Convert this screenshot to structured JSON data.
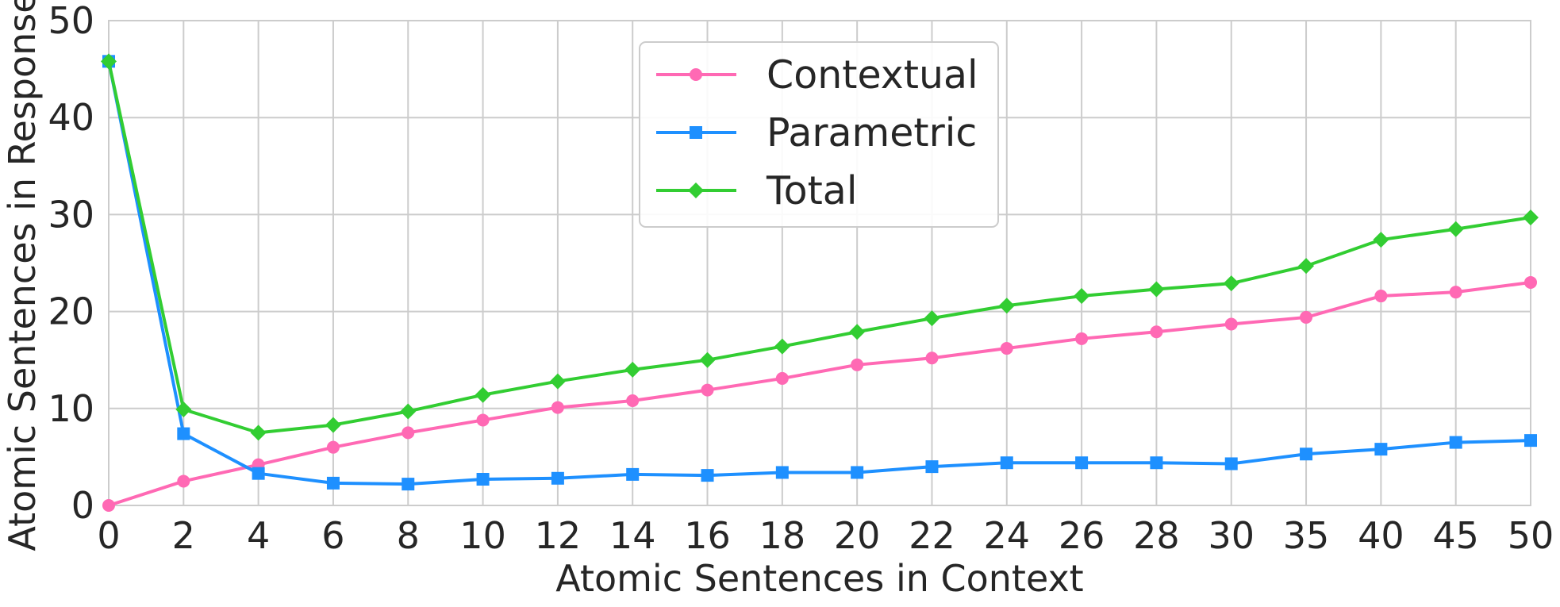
{
  "chart_data": {
    "type": "line",
    "xlabel": "Atomic Sentences in Context",
    "ylabel": "Atomic Sentences in Response",
    "categories": [
      "0",
      "2",
      "4",
      "6",
      "8",
      "10",
      "12",
      "14",
      "16",
      "18",
      "20",
      "22",
      "24",
      "26",
      "28",
      "30",
      "35",
      "40",
      "45",
      "50"
    ],
    "ylim": [
      0,
      50
    ],
    "yticks": [
      "0",
      "10",
      "20",
      "30",
      "40",
      "50"
    ],
    "grid": true,
    "legend_position": "top-center",
    "series": [
      {
        "name": "Contextual",
        "color": "#ff69b4",
        "marker": "circle",
        "values": [
          0,
          2.5,
          4.2,
          6.0,
          7.5,
          8.8,
          10.1,
          10.8,
          11.9,
          13.1,
          14.5,
          15.2,
          16.2,
          17.2,
          17.9,
          18.7,
          19.4,
          21.6,
          22.0,
          23.0
        ]
      },
      {
        "name": "Parametric",
        "color": "#1e90ff",
        "marker": "square",
        "values": [
          45.8,
          7.4,
          3.3,
          2.3,
          2.2,
          2.7,
          2.8,
          3.2,
          3.1,
          3.4,
          3.4,
          4.0,
          4.4,
          4.4,
          4.4,
          4.3,
          5.3,
          5.8,
          6.5,
          6.7
        ]
      },
      {
        "name": "Total",
        "color": "#32cd32",
        "marker": "diamond",
        "values": [
          45.8,
          9.9,
          7.5,
          8.3,
          9.7,
          11.4,
          12.8,
          14.0,
          15.0,
          16.4,
          17.9,
          19.3,
          20.6,
          21.6,
          22.3,
          22.9,
          24.7,
          27.4,
          28.5,
          29.7
        ]
      }
    ]
  }
}
